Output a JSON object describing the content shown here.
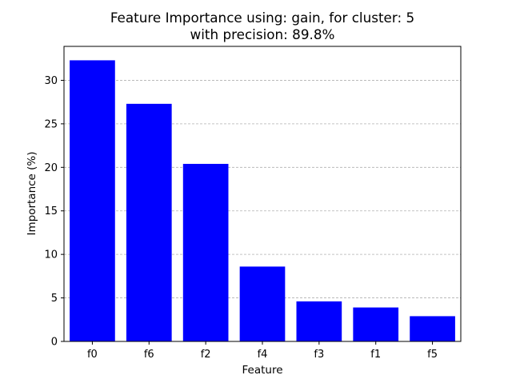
{
  "chart_data": {
    "type": "bar",
    "title_line1": "Feature Importance using: gain, for cluster: 5",
    "title_line2": "with precision: 89.8%",
    "xlabel": "Feature",
    "ylabel": "Importance (%)",
    "categories": [
      "f0",
      "f6",
      "f2",
      "f4",
      "f3",
      "f1",
      "f5"
    ],
    "values": [
      32.3,
      27.3,
      20.4,
      8.6,
      4.6,
      3.9,
      2.9
    ],
    "ylim": [
      0,
      33.9
    ],
    "yticks": [
      0,
      5,
      10,
      15,
      20,
      25,
      30
    ],
    "grid": "y-dashed",
    "bar_color": "#0000ff",
    "grid_color": "#b0b0b0"
  }
}
